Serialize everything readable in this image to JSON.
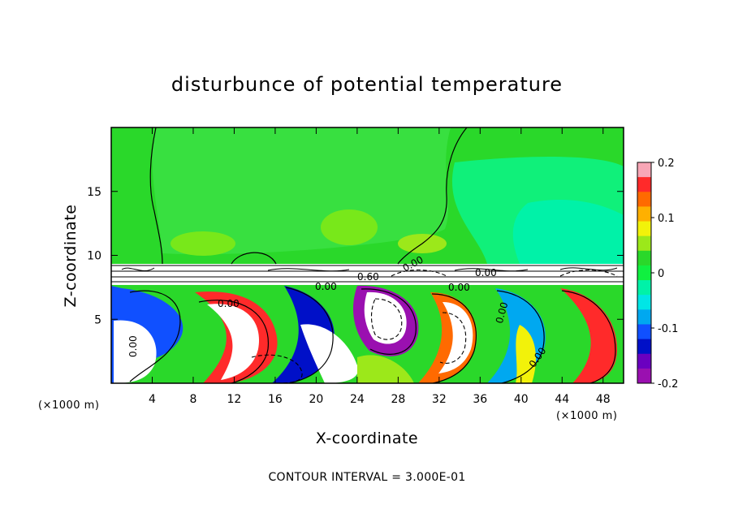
{
  "chart_data": {
    "type": "heatmap",
    "title": "disturbunce of potential temperature",
    "xlabel": "X-coordinate",
    "ylabel": "Z-coordinate",
    "x_unit": "(×1000 m)",
    "z_unit": "(×1000 m)",
    "xlim": [
      0,
      50
    ],
    "ylim": [
      0,
      20
    ],
    "x_ticks": [
      4,
      8,
      12,
      16,
      20,
      24,
      28,
      32,
      36,
      40,
      44,
      48
    ],
    "y_ticks": [
      5,
      10,
      15
    ],
    "colorbar": {
      "range": [
        -0.2,
        0.2
      ],
      "ticks": [
        "0.2",
        "0.1",
        "0",
        "-0.1",
        "-0.2"
      ],
      "tick_values": [
        0.2,
        0.1,
        0,
        -0.1,
        -0.2
      ],
      "colors": [
        "#f8a6b6",
        "#ff2a2a",
        "#ff6a00",
        "#ffb000",
        "#f2f20a",
        "#9ce81a",
        "#2ad82a",
        "#10f040",
        "#00f2a8",
        "#00e6e6",
        "#00a8f0",
        "#1050ff",
        "#0010c8",
        "#6a00c0",
        "#9a10b0"
      ]
    },
    "contour_labels": [
      "0.00",
      "0.00",
      "0.00",
      "0.00",
      "0.00",
      "0.60",
      "0.00",
      "0.00",
      "0.00"
    ],
    "footer": "CONTOUR INTERVAL = 3.000E-01"
  }
}
